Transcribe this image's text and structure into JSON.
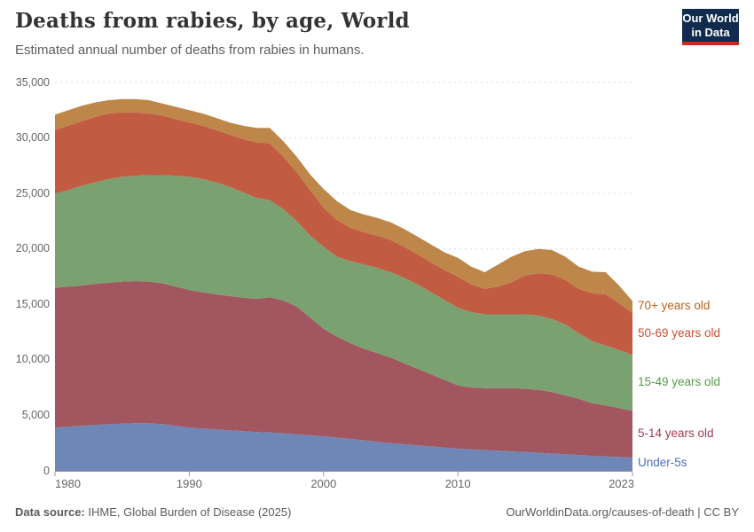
{
  "header": {
    "title": "Deaths from rabies, by age, World",
    "subtitle": "Estimated annual number of deaths from rabies in humans.",
    "logo_line1": "Our World",
    "logo_line2": "in Data"
  },
  "chart_data": {
    "type": "area",
    "stacked": true,
    "title": "Deaths from rabies, by age, World",
    "xlabel": "",
    "ylabel": "",
    "ylim": [
      0,
      35000
    ],
    "yticks": [
      0,
      5000,
      10000,
      15000,
      20000,
      25000,
      30000,
      35000
    ],
    "xticks": [
      1980,
      1990,
      2000,
      2010,
      2023
    ],
    "grid": "dashed-horizontal",
    "legend_position": "right-of-plot",
    "x": [
      1980,
      1981,
      1982,
      1983,
      1984,
      1985,
      1986,
      1987,
      1988,
      1989,
      1990,
      1991,
      1992,
      1993,
      1994,
      1995,
      1996,
      1997,
      1998,
      1999,
      2000,
      2001,
      2002,
      2003,
      2004,
      2005,
      2006,
      2007,
      2008,
      2009,
      2010,
      2011,
      2012,
      2013,
      2014,
      2015,
      2016,
      2017,
      2018,
      2019,
      2020,
      2021,
      2022,
      2023
    ],
    "series": [
      {
        "name": "Under-5s",
        "color": "#6e87b6",
        "label_color": "#4c6fbb",
        "values": [
          3900,
          3980,
          4060,
          4140,
          4200,
          4250,
          4300,
          4280,
          4200,
          4050,
          3900,
          3800,
          3720,
          3650,
          3580,
          3500,
          3450,
          3380,
          3300,
          3200,
          3100,
          3000,
          2880,
          2750,
          2620,
          2500,
          2400,
          2300,
          2200,
          2100,
          2000,
          1930,
          1870,
          1810,
          1750,
          1700,
          1630,
          1560,
          1500,
          1430,
          1350,
          1300,
          1250,
          1200
        ]
      },
      {
        "name": "5-14 years old",
        "color": "#a25660",
        "label_color": "#a23b53",
        "values": [
          12600,
          12620,
          12640,
          12710,
          12750,
          12800,
          12800,
          12770,
          12700,
          12550,
          12400,
          12300,
          12180,
          12100,
          12020,
          12000,
          12200,
          11970,
          11500,
          10600,
          9700,
          9100,
          8620,
          8250,
          7980,
          7700,
          7300,
          6900,
          6500,
          6100,
          5700,
          5570,
          5580,
          5640,
          5700,
          5700,
          5670,
          5540,
          5300,
          5070,
          4750,
          4600,
          4400,
          4200
        ]
      },
      {
        "name": "15-49 years old",
        "color": "#7ba171",
        "label_color": "#579a4b",
        "values": [
          8500,
          8700,
          9000,
          9150,
          9350,
          9450,
          9500,
          9600,
          9750,
          10000,
          10200,
          10200,
          10100,
          9850,
          9500,
          9100,
          8750,
          8250,
          7700,
          7400,
          7400,
          7200,
          7400,
          7600,
          7700,
          7700,
          7700,
          7600,
          7400,
          7200,
          7000,
          6800,
          6650,
          6650,
          6650,
          6700,
          6700,
          6600,
          6400,
          5900,
          5600,
          5400,
          5250,
          5050
        ]
      },
      {
        "name": "50-69 years old",
        "color": "#c15b41",
        "label_color": "#ca4e34",
        "values": [
          5700,
          5800,
          5800,
          5900,
          5900,
          5800,
          5700,
          5550,
          5350,
          5100,
          4900,
          4800,
          4700,
          4700,
          4800,
          5000,
          5100,
          4700,
          4400,
          4100,
          3500,
          3300,
          3000,
          2900,
          2900,
          2900,
          2800,
          2700,
          2700,
          2700,
          2800,
          2500,
          2300,
          2500,
          2900,
          3500,
          3800,
          4000,
          4000,
          4000,
          4300,
          4600,
          4200,
          3750
        ]
      },
      {
        "name": "70+ years old",
        "color": "#bf8649",
        "label_color": "#b9641c",
        "values": [
          1400,
          1400,
          1400,
          1300,
          1200,
          1200,
          1200,
          1200,
          1100,
          1100,
          1100,
          1100,
          1100,
          1100,
          1200,
          1300,
          1400,
          1400,
          1400,
          1400,
          1700,
          1700,
          1600,
          1600,
          1600,
          1600,
          1600,
          1600,
          1600,
          1600,
          1700,
          1600,
          1500,
          2000,
          2300,
          2200,
          2200,
          2200,
          2100,
          2000,
          1950,
          2000,
          1600,
          1100
        ]
      }
    ]
  },
  "footer": {
    "source_label": "Data source:",
    "source_text": " IHME, Global Burden of Disease (2025)",
    "credit": "OurWorldinData.org/causes-of-death | CC BY"
  }
}
